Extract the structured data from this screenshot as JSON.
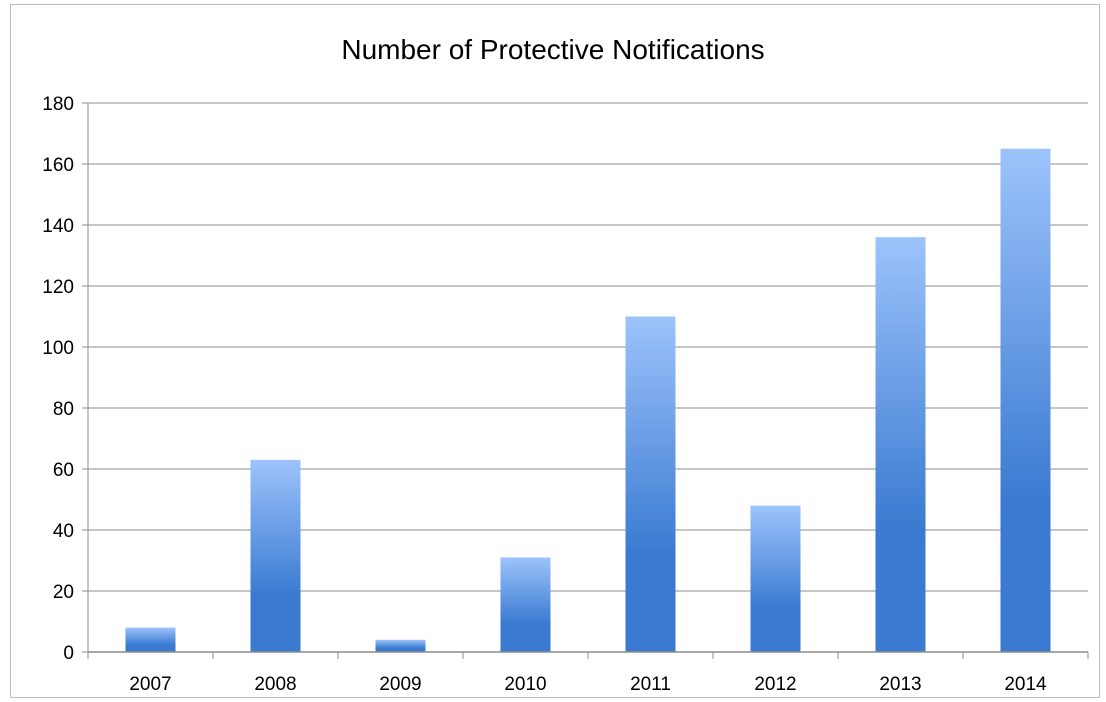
{
  "chart_data": {
    "type": "bar",
    "title": "Number of Protective Notifications",
    "categories": [
      "2007",
      "2008",
      "2009",
      "2010",
      "2011",
      "2012",
      "2013",
      "2014"
    ],
    "values": [
      8,
      63,
      4,
      31,
      110,
      48,
      136,
      165
    ],
    "xlabel": "",
    "ylabel": "",
    "ylim": [
      0,
      180
    ],
    "yticks": [
      0,
      20,
      40,
      60,
      80,
      100,
      120,
      140,
      160,
      180
    ],
    "grid": true,
    "legend": "none",
    "colors": {
      "bar_top": "#9dc3fb",
      "bar_bottom": "#3a7bd1",
      "grid": "#8c8c8c",
      "axis": "#8c8c8c"
    }
  }
}
